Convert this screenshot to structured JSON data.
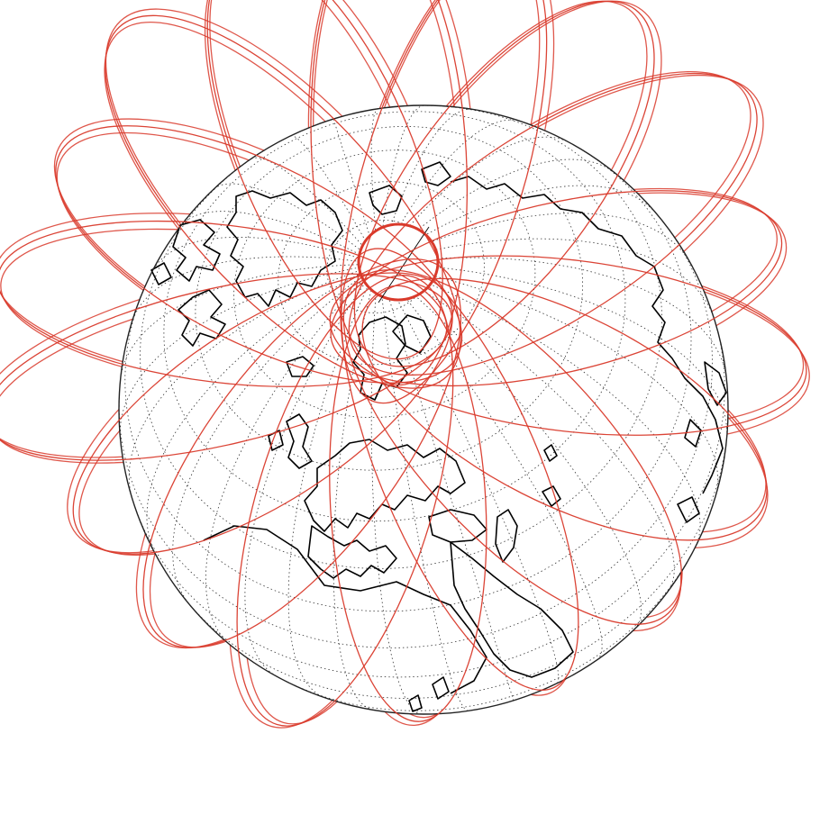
{
  "figure": {
    "kind": "orthographic-globe-with-satellite-ground-tracks",
    "view_center": {
      "lat": 60,
      "lon": 30
    },
    "graticule": {
      "lat_step_deg": 10,
      "lon_step_deg": 10,
      "style": "dotted"
    },
    "orbits": {
      "count": 18,
      "passes_per_orbit": 3,
      "inclination_deg": 65
    },
    "colors": {
      "background": "#ffffff",
      "orbit_tracks": "#d93a2b",
      "coastlines": "#000000",
      "graticule": "#333333",
      "limb": "#222222"
    }
  }
}
